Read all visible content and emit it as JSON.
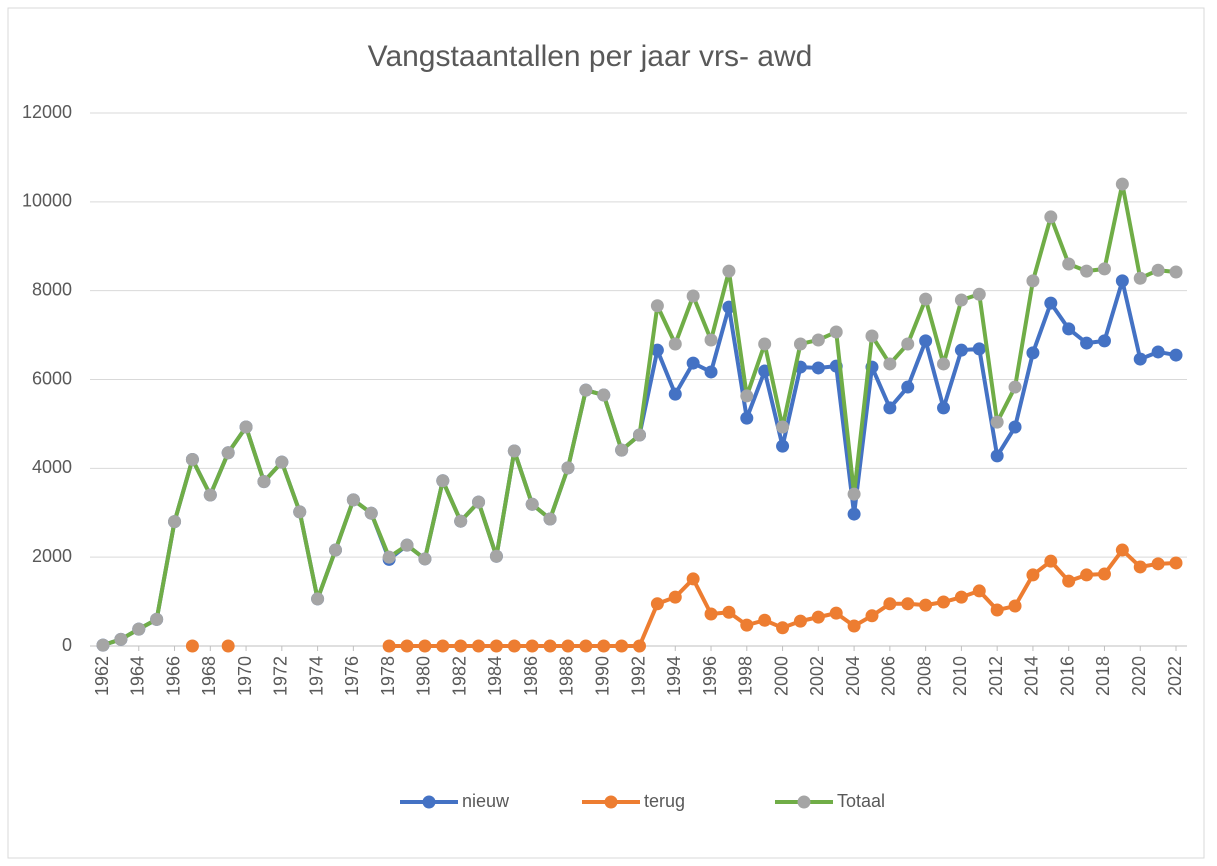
{
  "chart_data": {
    "type": "line",
    "title": "Vangstaantallen per jaar  vrs- awd",
    "x": [
      1962,
      1963,
      1964,
      1965,
      1966,
      1967,
      1968,
      1969,
      1970,
      1971,
      1972,
      1973,
      1974,
      1975,
      1976,
      1977,
      1978,
      1979,
      1980,
      1981,
      1982,
      1983,
      1984,
      1985,
      1986,
      1987,
      1988,
      1989,
      1990,
      1991,
      1992,
      1993,
      1994,
      1995,
      1996,
      1997,
      1998,
      1999,
      2000,
      2001,
      2002,
      2003,
      2004,
      2005,
      2006,
      2007,
      2008,
      2009,
      2010,
      2011,
      2012,
      2013,
      2014,
      2015,
      2016,
      2017,
      2018,
      2019,
      2020,
      2021,
      2022
    ],
    "xlim": [
      1962,
      2022
    ],
    "xticks": [
      1962,
      1964,
      1966,
      1968,
      1970,
      1972,
      1974,
      1976,
      1978,
      1980,
      1982,
      1984,
      1986,
      1988,
      1990,
      1992,
      1994,
      1996,
      1998,
      2000,
      2002,
      2004,
      2006,
      2008,
      2010,
      2012,
      2014,
      2016,
      2018,
      2020,
      2022
    ],
    "ylim": [
      0,
      12000
    ],
    "yticks": [
      0,
      2000,
      4000,
      6000,
      8000,
      10000,
      12000
    ],
    "grid": true,
    "legend": "bottom",
    "series": [
      {
        "name": "nieuw",
        "color": "#4472c4",
        "marker_color": "#4472c4",
        "values": [
          20,
          150,
          380,
          600,
          2800,
          4200,
          3400,
          4350,
          4930,
          3700,
          4140,
          3020,
          1060,
          2160,
          3290,
          2990,
          1950,
          2270,
          1960,
          3720,
          2810,
          3240,
          2020,
          4390,
          3190,
          2860,
          4010,
          5760,
          5650,
          4410,
          4750,
          6660,
          5670,
          6370,
          6170,
          7630,
          5130,
          6190,
          4500,
          6280,
          6260,
          6300,
          2970,
          6280,
          5360,
          5830,
          6870,
          5360,
          6660,
          6690,
          4280,
          4930,
          6600,
          7720,
          7140,
          6820,
          6870,
          8220,
          6460,
          6620,
          6550
        ]
      },
      {
        "name": "terug",
        "color": "#ed7d31",
        "marker_color": "#ed7d31",
        "values": [
          null,
          null,
          null,
          null,
          null,
          0,
          null,
          0,
          null,
          null,
          null,
          null,
          null,
          null,
          null,
          null,
          0,
          0,
          0,
          0,
          0,
          0,
          0,
          0,
          0,
          0,
          0,
          0,
          0,
          0,
          0,
          950,
          1100,
          1510,
          720,
          760,
          470,
          580,
          410,
          560,
          650,
          740,
          450,
          680,
          950,
          950,
          920,
          990,
          1100,
          1240,
          810,
          900,
          1600,
          1910,
          1460,
          1600,
          1620,
          2160,
          1780,
          1850,
          1870
        ]
      },
      {
        "name": "Totaal",
        "color": "#70ad47",
        "marker_color": "#a5a5a5",
        "values": [
          20,
          150,
          380,
          600,
          2800,
          4200,
          3400,
          4350,
          4930,
          3700,
          4140,
          3020,
          1060,
          2160,
          3290,
          2990,
          2000,
          2270,
          1960,
          3720,
          2810,
          3240,
          2020,
          4390,
          3190,
          2860,
          4010,
          5760,
          5650,
          4410,
          4750,
          7660,
          6800,
          7880,
          6890,
          8440,
          5630,
          6800,
          4930,
          6800,
          6890,
          7070,
          3420,
          6980,
          6350,
          6800,
          7810,
          6350,
          7790,
          7920,
          5040,
          5830,
          8220,
          9660,
          8600,
          8440,
          8490,
          10400,
          8280,
          8460,
          8420
        ]
      }
    ]
  }
}
